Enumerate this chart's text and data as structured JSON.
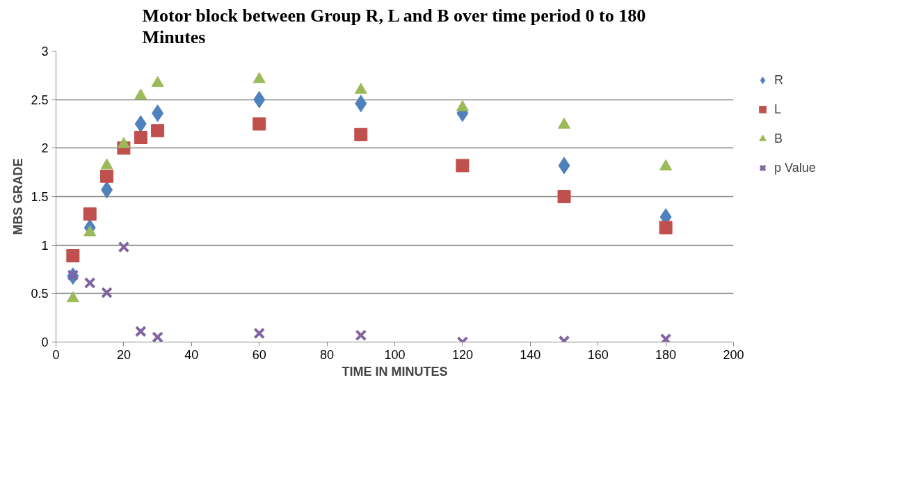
{
  "chart_data": {
    "type": "scatter",
    "title": "Motor block between Group R, L and B over time period 0 to 180 Minutes",
    "xlabel": "TIME IN MINUTES",
    "ylabel": "MBS GRADE",
    "x": [
      5,
      10,
      15,
      20,
      25,
      30,
      60,
      90,
      120,
      150,
      180
    ],
    "series": [
      {
        "name": "R",
        "color": "#4f81bd",
        "marker": "diamond",
        "values": [
          0.68,
          1.18,
          1.57,
          null,
          2.25,
          2.36,
          2.5,
          2.46,
          2.36,
          1.82,
          1.29
        ]
      },
      {
        "name": "L",
        "color": "#c0504d",
        "marker": "square",
        "values": [
          0.89,
          1.32,
          1.71,
          2.0,
          2.11,
          2.18,
          2.25,
          2.14,
          1.82,
          1.5,
          1.18
        ]
      },
      {
        "name": "B",
        "color": "#9bbb59",
        "marker": "triangle",
        "values": [
          0.45,
          1.13,
          1.82,
          2.04,
          2.54,
          2.67,
          2.71,
          2.6,
          2.42,
          2.24,
          1.81
        ]
      },
      {
        "name": "p Value",
        "color": "#8064a2",
        "marker": "cross",
        "values": [
          0.69,
          0.61,
          0.51,
          0.98,
          0.11,
          0.05,
          0.09,
          0.07,
          0.0,
          0.01,
          0.03
        ]
      }
    ],
    "xlim": [
      0,
      200
    ],
    "xticks": [
      0,
      20,
      40,
      60,
      80,
      100,
      120,
      140,
      160,
      180,
      200
    ],
    "ylim": [
      0,
      3
    ],
    "yticks": [
      0,
      0.5,
      1,
      1.5,
      2,
      2.5,
      3
    ],
    "grid": "y",
    "legend": "right"
  }
}
